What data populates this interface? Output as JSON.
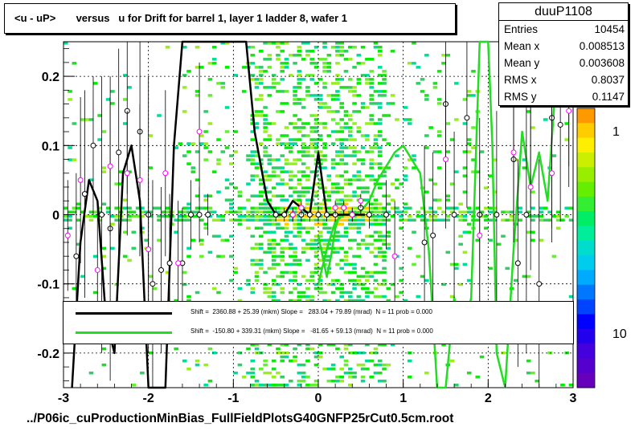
{
  "title": "<u - uP>       versus   u for Drift for barrel 1, layer 1 ladder 8, wafer 1",
  "stats": {
    "name": "duuP1108",
    "rows": [
      {
        "key": "Entries",
        "value": "10454"
      },
      {
        "key": "Mean x",
        "value": "0.008513"
      },
      {
        "key": "Mean y",
        "value": "0.003608"
      },
      {
        "key": "RMS x",
        "value": "0.8037"
      },
      {
        "key": "RMS y",
        "value": "0.1147"
      }
    ]
  },
  "legend": [
    {
      "color": "#000000",
      "text": "Shift =  2360.88 + 25.39 (mkm) Slope =   283.04 + 79.89 (mrad)  N = 11 prob = 0.000"
    },
    {
      "color": "#00dd00",
      "text": "Shift =  -150.80 + 339.31 (mkm) Slope =   -81.65 + 59.13 (mrad)  N = 11 prob = 0.000"
    }
  ],
  "footer": "../P06ic_cuProductionMinBias_FullFieldPlotsG40GNFP25rCut0.5cm.root",
  "colors": {
    "profile_black": "#000000",
    "profile_magenta": "#ff00ff",
    "fit_black": "#000000",
    "fit_green": "#22dd22"
  },
  "chart_data": {
    "type": "heatmap",
    "xlim": [
      -3,
      3
    ],
    "ylim": [
      -0.25,
      0.25
    ],
    "x_ticks": [
      -3,
      -2,
      -1,
      0,
      1,
      2,
      3
    ],
    "x_tick_labels": [
      "-3",
      "-2",
      "-1",
      "0",
      "1",
      "2",
      "3"
    ],
    "y_ticks": [
      -0.2,
      -0.1,
      0,
      0.1,
      0.2
    ],
    "y_tick_labels": [
      "-0.2",
      "-0.1",
      "0",
      "0.1",
      "0.2"
    ],
    "grid": true,
    "colorbar": {
      "scale": "log",
      "labels": [
        "10",
        "1"
      ],
      "label_values": [
        10,
        1
      ]
    },
    "profile_black": {
      "x": [
        -2.85,
        -2.75,
        -2.65,
        -2.55,
        -2.45,
        -2.35,
        -2.25,
        -2.1,
        -2.0,
        -1.95,
        -1.85,
        -1.75,
        -1.6,
        -1.5,
        -1.4,
        -1.3,
        -0.5,
        -0.4,
        -0.3,
        -0.2,
        -0.1,
        0.0,
        0.1,
        0.2,
        0.3,
        0.4,
        0.5,
        0.6,
        0.8,
        1.25,
        1.35,
        1.5,
        1.6,
        1.75,
        1.9,
        2.1,
        2.3,
        2.35,
        2.45,
        2.5,
        2.6,
        2.75,
        2.85,
        2.95
      ],
      "y": [
        -0.06,
        0.03,
        0.1,
        0.0,
        -0.02,
        0.09,
        0.15,
        0.12,
        0.0,
        -0.1,
        -0.08,
        -0.07,
        -0.07,
        0.0,
        0.0,
        0.0,
        0.0,
        0.0,
        0.0,
        0.0,
        0.0,
        0.0,
        0.0,
        0.0,
        0.01,
        0.0,
        0.01,
        0.0,
        0.0,
        -0.04,
        -0.03,
        0.16,
        0.0,
        0.14,
        0.0,
        0.0,
        0.08,
        -0.07,
        0.0,
        0.16,
        -0.1,
        0.14,
        0.13,
        0.16
      ],
      "err": [
        0.12,
        0.15,
        0.1,
        0.2,
        0.22,
        0.15,
        0.12,
        0.18,
        0.2,
        0.15,
        0.12,
        0.1,
        0.08,
        0.05,
        0.04,
        0.03,
        0.01,
        0.01,
        0.01,
        0.01,
        0.01,
        0.01,
        0.01,
        0.01,
        0.01,
        0.01,
        0.01,
        0.02,
        0.05,
        0.14,
        0.12,
        0.15,
        0.12,
        0.13,
        0.14,
        0.15,
        0.12,
        0.15,
        0.2,
        0.15,
        0.18,
        0.16,
        0.14,
        0.12
      ]
    },
    "profile_magenta": {
      "x": [
        -2.95,
        -2.8,
        -2.6,
        -2.45,
        -2.25,
        -2.1,
        -2.0,
        -1.8,
        -1.65,
        -1.4,
        -0.3,
        -0.2,
        0.2,
        0.3,
        0.4,
        0.5,
        0.9,
        1.5,
        1.9,
        2.3,
        2.5,
        2.75,
        2.95
      ],
      "y": [
        -0.03,
        0.05,
        -0.08,
        0.07,
        0.06,
        0.05,
        -0.05,
        0.06,
        -0.07,
        0.12,
        0.0,
        0.01,
        0.01,
        0.01,
        0.0,
        0.02,
        -0.06,
        0.08,
        -0.03,
        0.09,
        0.04,
        0.06,
        0.15
      ],
      "err": [
        0.08,
        0.12,
        0.1,
        0.1,
        0.09,
        0.11,
        0.1,
        0.12,
        0.09,
        0.1,
        0.01,
        0.01,
        0.01,
        0.01,
        0.01,
        0.01,
        0.08,
        0.1,
        0.12,
        0.1,
        0.12,
        0.1,
        0.08
      ]
    },
    "fit_black": {
      "x": [
        -2.9,
        -2.8,
        -2.7,
        -2.6,
        -2.5,
        -2.4,
        -2.3,
        -2.2,
        -2.1,
        -2.0,
        -1.9,
        -1.8,
        -1.7,
        -1.6,
        -1.55,
        -1.45,
        -1.35,
        -0.85,
        -0.75,
        -0.6,
        -0.5,
        -0.4,
        -0.3,
        -0.2,
        -0.1,
        0.0,
        0.1,
        0.2,
        0.3,
        0.4,
        0.5,
        0.55
      ],
      "y": [
        -0.25,
        -0.04,
        0.05,
        0.02,
        -0.15,
        -0.2,
        0.06,
        0.1,
        0.02,
        -0.25,
        -0.25,
        -0.25,
        0.1,
        0.25,
        0.25,
        0.25,
        0.25,
        0.25,
        0.12,
        0.02,
        0.0,
        0.0,
        0.02,
        0.01,
        0.0,
        0.09,
        0.0,
        0.0,
        0.0,
        0.0,
        0.0,
        0.0
      ]
    },
    "fit_green": {
      "x": [
        0.0,
        0.1,
        0.2,
        0.3,
        0.4,
        0.5,
        0.6,
        0.7,
        0.8,
        0.9,
        1.0,
        1.1,
        1.2,
        1.3,
        1.4,
        1.5,
        1.6,
        1.7,
        1.8,
        1.9,
        2.0,
        2.05,
        2.1,
        2.2,
        2.3,
        2.4,
        2.5,
        2.6,
        2.7,
        2.8,
        2.9
      ],
      "y": [
        -0.1,
        -0.05,
        -0.01,
        0.0,
        0.0,
        0.005,
        0.02,
        0.05,
        0.07,
        0.09,
        0.1,
        0.08,
        0.06,
        -0.05,
        -0.25,
        -0.25,
        -0.12,
        -0.18,
        -0.12,
        0.25,
        0.25,
        0.1,
        -0.2,
        -0.25,
        -0.05,
        0.12,
        0.04,
        0.09,
        0.02,
        0.2,
        0.25
      ]
    },
    "fit_green_left": {
      "x": [
        0.0,
        0.05,
        0.1,
        0.15,
        0.2,
        0.25
      ],
      "y": [
        -0.03,
        -0.06,
        -0.09,
        -0.06,
        -0.02,
        0.0
      ]
    }
  }
}
